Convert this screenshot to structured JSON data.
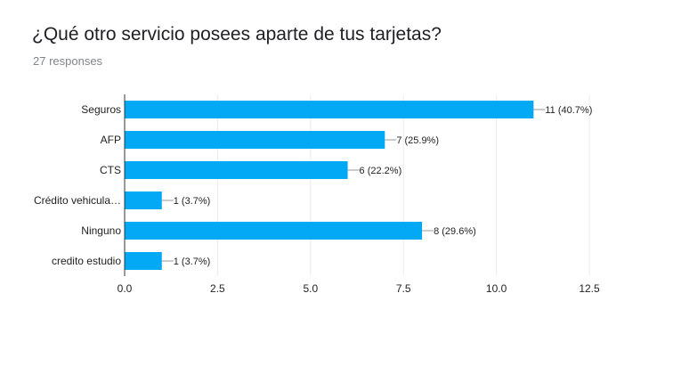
{
  "header": {
    "title": "¿Qué otro servicio posees aparte de tus tarjetas?",
    "responses": "27 responses"
  },
  "colors": {
    "bar": "#03a9f4",
    "axis": "#333333",
    "grid": "#ebebeb",
    "connector": "#999999"
  },
  "chart_data": {
    "type": "bar",
    "orientation": "horizontal",
    "categories": [
      "Seguros",
      "AFP",
      "CTS",
      "Crédito vehicula…",
      "Ninguno",
      "credito estudio"
    ],
    "values": [
      11,
      7,
      6,
      1,
      8,
      1
    ],
    "data_labels": [
      "11 (40.7%)",
      "7 (25.9%)",
      "6 (22.2%)",
      "1 (3.7%)",
      "8 (29.6%)",
      "1 (3.7%)"
    ],
    "xlim": [
      0,
      12.5
    ],
    "x_ticks": [
      0,
      2.5,
      5,
      7.5,
      10,
      12.5
    ],
    "x_tick_labels": [
      "0.0",
      "2.5",
      "5.0",
      "7.5",
      "10.0",
      "12.5"
    ],
    "grid": true,
    "legend": "none"
  }
}
